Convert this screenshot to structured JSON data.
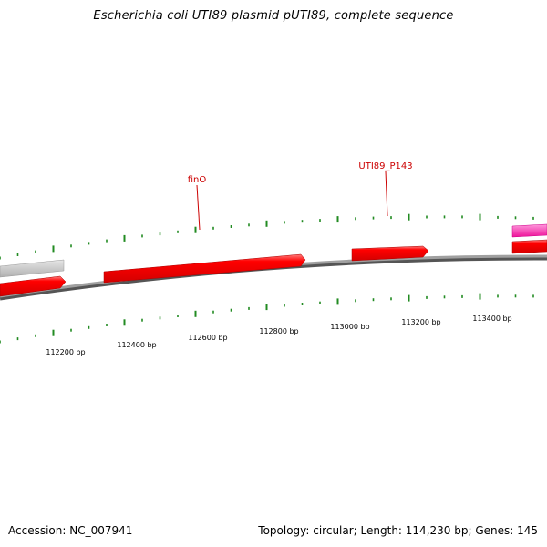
{
  "title": "Escherichia coli UTI89 plasmid pUTI89, complete sequence",
  "accession": "Accession: NC_007941",
  "summary": "Topology: circular; Length: 114,230 bp; Genes: 145",
  "colors": {
    "gene_red": "#ff0000",
    "gene_gray": "#c0c0c0",
    "gene_pink": "#ff33cc",
    "tick_green": "#228b22",
    "label_red": "#cc0000",
    "backbone": "#888888"
  },
  "feature_labels": [
    {
      "id": "finO",
      "text": "finO"
    },
    {
      "id": "utI89_p143",
      "text": "UTI89_P143"
    }
  ],
  "ruler_labels": [
    "112200 bp",
    "112400 bp",
    "112600 bp",
    "112800 bp",
    "113000 bp",
    "113200 bp",
    "113400 bp"
  ]
}
